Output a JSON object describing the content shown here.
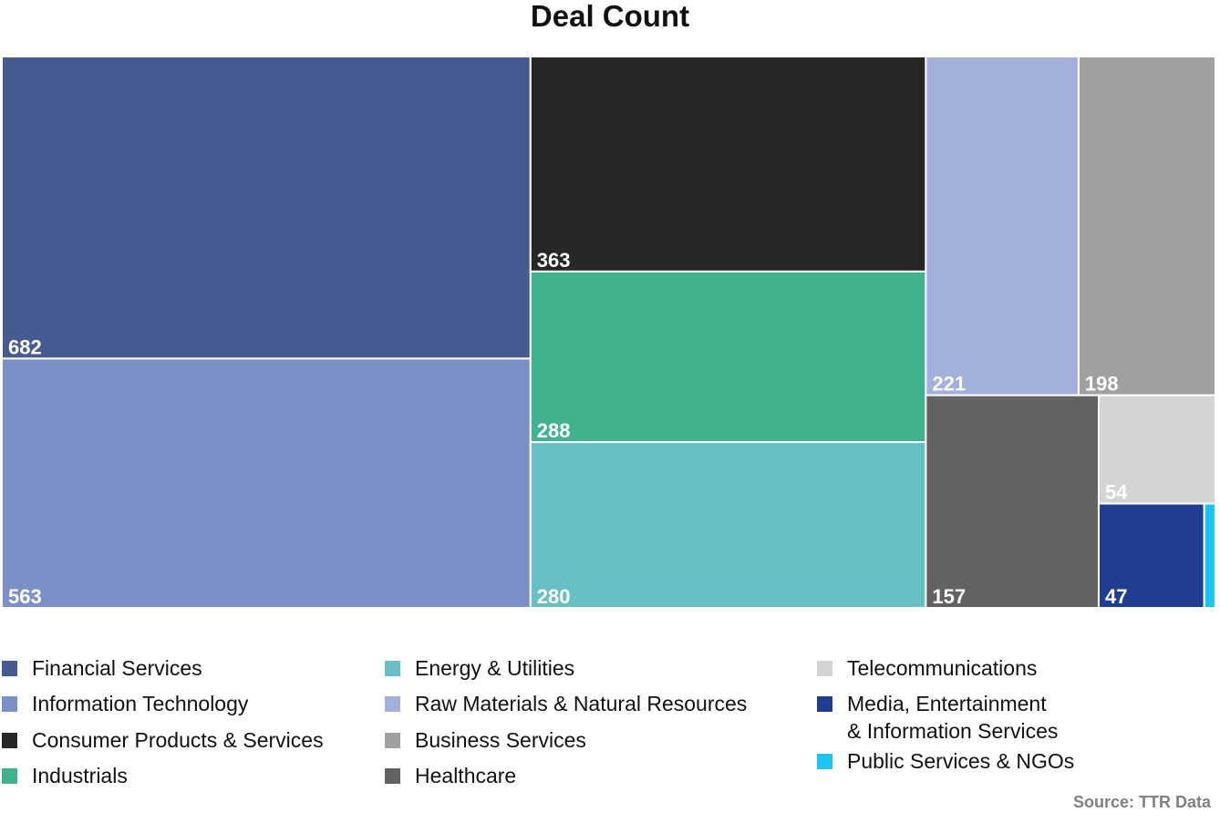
{
  "chart_data": {
    "type": "treemap",
    "title": "Deal Count",
    "source": "Source: TTR Data",
    "categories": [
      "Financial Services",
      "Information Technology",
      "Consumer Products & Services",
      "Industrials",
      "Energy & Utilities",
      "Raw Materials & Natural Resources",
      "Business Services",
      "Healthcare",
      "Telecommunications",
      "Media, Entertainment & Information Services",
      "Public Services & NGOs"
    ],
    "values": [
      682,
      563,
      363,
      288,
      280,
      221,
      198,
      157,
      54,
      47,
      5
    ],
    "value_labels": [
      "682",
      "563",
      "363",
      "288",
      "280",
      "221",
      "198",
      "157",
      "54",
      "47",
      ""
    ],
    "colors": [
      "#455b92",
      "#7b8fc8",
      "#272727",
      "#40b38e",
      "#66c0c5",
      "#a2b0dc",
      "#a0a0a0",
      "#626262",
      "#d4d4d4",
      "#1f3e92",
      "#1cc4ee"
    ],
    "legend": [
      {
        "label_lines": [
          "Financial Services"
        ],
        "color": "#455b92"
      },
      {
        "label_lines": [
          "Information Technology"
        ],
        "color": "#7b8fc8"
      },
      {
        "label_lines": [
          "Consumer Products & Services"
        ],
        "color": "#272727"
      },
      {
        "label_lines": [
          "Industrials"
        ],
        "color": "#40b38e"
      },
      {
        "label_lines": [
          "Energy & Utilities"
        ],
        "color": "#66c0c5"
      },
      {
        "label_lines": [
          "Raw Materials & Natural Resources"
        ],
        "color": "#a2b0dc"
      },
      {
        "label_lines": [
          "Business Services"
        ],
        "color": "#a0a0a0"
      },
      {
        "label_lines": [
          "Healthcare"
        ],
        "color": "#626262"
      },
      {
        "label_lines": [
          "Telecommunications"
        ],
        "color": "#d4d4d4"
      },
      {
        "label_lines": [
          "Media, Entertainment",
          "& Information Services"
        ],
        "color": "#1f3e92"
      },
      {
        "label_lines": [
          "Public Services & NGOs"
        ],
        "color": "#1cc4ee"
      }
    ]
  }
}
